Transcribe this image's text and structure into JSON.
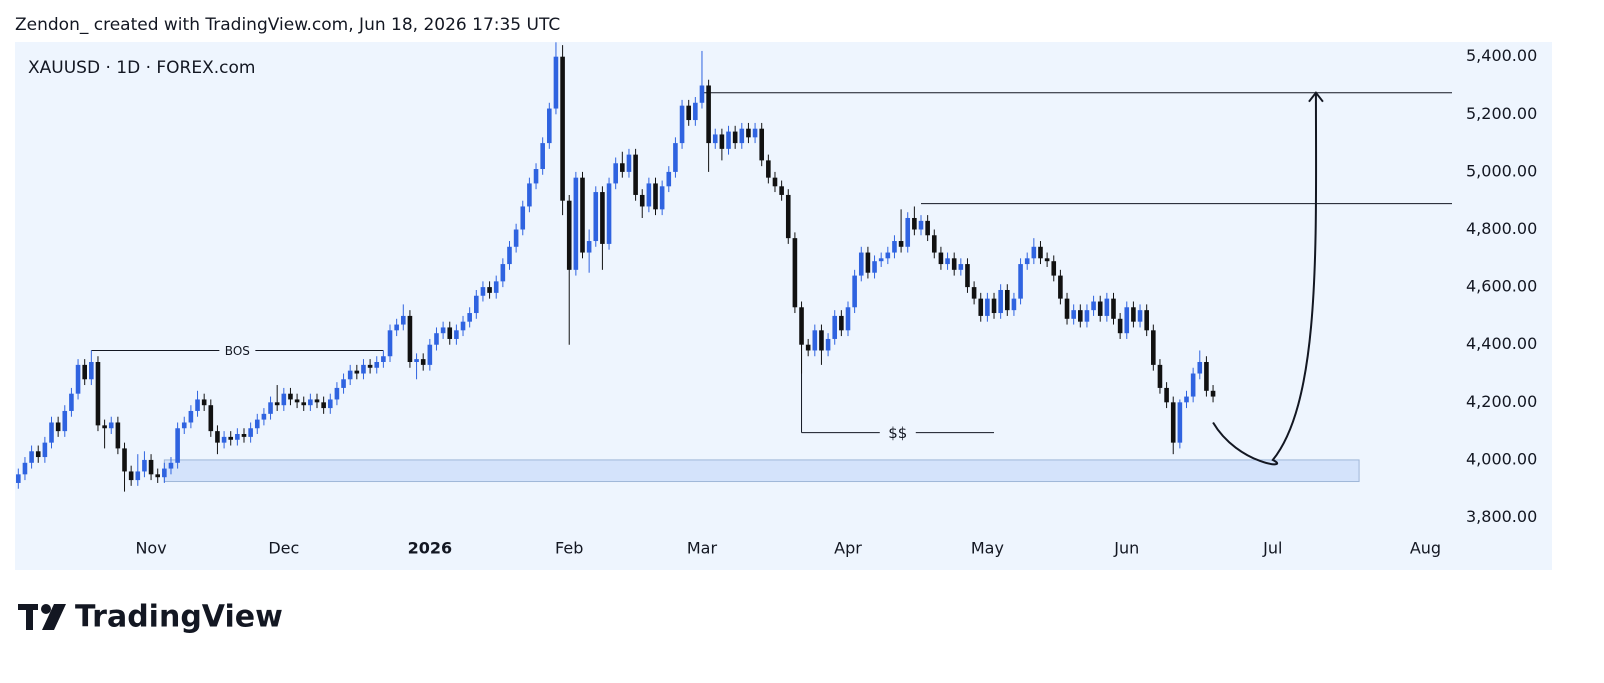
{
  "header": "Zendon_ created with TradingView.com, Jun 18, 2026 17:35 UTC",
  "footer": {
    "logo": "TradingView"
  },
  "chart_data": {
    "type": "candlestick",
    "symbol": "XAUUSD · 1D · FOREX.com",
    "up_color": "#2f63e0",
    "down_color": "#111111",
    "xlim": [
      -0.5,
      216
    ],
    "ylim": [
      3722,
      5451
    ],
    "xticks": [
      {
        "value": 20,
        "label": "Nov"
      },
      {
        "value": 40,
        "label": "Dec"
      },
      {
        "value": 62,
        "label": "2026"
      },
      {
        "value": 83,
        "label": "Feb"
      },
      {
        "value": 103,
        "label": "Mar"
      },
      {
        "value": 125,
        "label": "Apr"
      },
      {
        "value": 146,
        "label": "May"
      },
      {
        "value": 167,
        "label": "Jun"
      },
      {
        "value": 189,
        "label": "Jul"
      },
      {
        "value": 212,
        "label": "Aug"
      }
    ],
    "yticks": [
      {
        "value": 3800,
        "label": "3,800.00"
      },
      {
        "value": 4000,
        "label": "4,000.00"
      },
      {
        "value": 4200,
        "label": "4,200.00"
      },
      {
        "value": 4400,
        "label": "4,400.00"
      },
      {
        "value": 4600,
        "label": "4,600.00"
      },
      {
        "value": 4800,
        "label": "4,800.00"
      },
      {
        "value": 5000,
        "label": "5,000.00"
      },
      {
        "value": 5200,
        "label": "5,200.00"
      },
      {
        "value": 5400,
        "label": "5,400.00"
      }
    ],
    "ohlc": [
      [
        3920,
        3970,
        3900,
        3950
      ],
      [
        3950,
        4010,
        3930,
        3990
      ],
      [
        3990,
        4050,
        3970,
        4030
      ],
      [
        4030,
        4050,
        3990,
        4010
      ],
      [
        4010,
        4080,
        3990,
        4060
      ],
      [
        4060,
        4150,
        4040,
        4130
      ],
      [
        4130,
        4150,
        4080,
        4100
      ],
      [
        4100,
        4190,
        4080,
        4170
      ],
      [
        4170,
        4250,
        4150,
        4230
      ],
      [
        4230,
        4350,
        4210,
        4330
      ],
      [
        4330,
        4350,
        4260,
        4280
      ],
      [
        4280,
        4380,
        4260,
        4340
      ],
      [
        4340,
        4360,
        4100,
        4120
      ],
      [
        4120,
        4140,
        4040,
        4110
      ],
      [
        4110,
        4150,
        4090,
        4130
      ],
      [
        4130,
        4150,
        4020,
        4040
      ],
      [
        4040,
        4060,
        3890,
        3960
      ],
      [
        3960,
        3980,
        3910,
        3930
      ],
      [
        3930,
        4020,
        3910,
        3960
      ],
      [
        3960,
        4030,
        3940,
        4000
      ],
      [
        4000,
        4020,
        3930,
        3950
      ],
      [
        3950,
        3970,
        3920,
        3940
      ],
      [
        3940,
        3990,
        3920,
        3970
      ],
      [
        3970,
        4010,
        3950,
        3990
      ],
      [
        3990,
        4130,
        3970,
        4110
      ],
      [
        4110,
        4150,
        4090,
        4130
      ],
      [
        4130,
        4190,
        4110,
        4170
      ],
      [
        4170,
        4240,
        4150,
        4210
      ],
      [
        4210,
        4230,
        4170,
        4190
      ],
      [
        4190,
        4210,
        4080,
        4100
      ],
      [
        4100,
        4120,
        4020,
        4060
      ],
      [
        4060,
        4100,
        4040,
        4080
      ],
      [
        4080,
        4100,
        4050,
        4070
      ],
      [
        4070,
        4110,
        4050,
        4090
      ],
      [
        4090,
        4110,
        4060,
        4080
      ],
      [
        4080,
        4130,
        4060,
        4110
      ],
      [
        4110,
        4160,
        4090,
        4140
      ],
      [
        4140,
        4180,
        4120,
        4160
      ],
      [
        4160,
        4220,
        4140,
        4200
      ],
      [
        4200,
        4260,
        4170,
        4190
      ],
      [
        4190,
        4250,
        4170,
        4230
      ],
      [
        4230,
        4250,
        4190,
        4210
      ],
      [
        4210,
        4230,
        4180,
        4200
      ],
      [
        4200,
        4220,
        4170,
        4190
      ],
      [
        4190,
        4230,
        4170,
        4210
      ],
      [
        4210,
        4230,
        4180,
        4200
      ],
      [
        4200,
        4220,
        4160,
        4180
      ],
      [
        4180,
        4230,
        4160,
        4210
      ],
      [
        4210,
        4270,
        4190,
        4250
      ],
      [
        4250,
        4300,
        4230,
        4280
      ],
      [
        4280,
        4330,
        4260,
        4310
      ],
      [
        4310,
        4330,
        4280,
        4300
      ],
      [
        4300,
        4350,
        4280,
        4330
      ],
      [
        4330,
        4350,
        4300,
        4320
      ],
      [
        4320,
        4360,
        4300,
        4340
      ],
      [
        4340,
        4380,
        4320,
        4360
      ],
      [
        4360,
        4470,
        4340,
        4450
      ],
      [
        4450,
        4490,
        4430,
        4470
      ],
      [
        4470,
        4540,
        4450,
        4500
      ],
      [
        4500,
        4520,
        4320,
        4340
      ],
      [
        4340,
        4370,
        4280,
        4350
      ],
      [
        4350,
        4370,
        4310,
        4330
      ],
      [
        4330,
        4420,
        4310,
        4400
      ],
      [
        4400,
        4460,
        4380,
        4440
      ],
      [
        4440,
        4480,
        4420,
        4460
      ],
      [
        4460,
        4480,
        4400,
        4420
      ],
      [
        4420,
        4470,
        4400,
        4450
      ],
      [
        4450,
        4500,
        4430,
        4480
      ],
      [
        4480,
        4530,
        4460,
        4510
      ],
      [
        4510,
        4590,
        4490,
        4570
      ],
      [
        4570,
        4620,
        4550,
        4600
      ],
      [
        4600,
        4620,
        4560,
        4580
      ],
      [
        4580,
        4640,
        4560,
        4620
      ],
      [
        4620,
        4700,
        4600,
        4680
      ],
      [
        4680,
        4760,
        4660,
        4740
      ],
      [
        4740,
        4820,
        4720,
        4800
      ],
      [
        4800,
        4900,
        4780,
        4880
      ],
      [
        4880,
        4980,
        4860,
        4960
      ],
      [
        4960,
        5030,
        4940,
        5010
      ],
      [
        5010,
        5120,
        4990,
        5100
      ],
      [
        5100,
        5240,
        5080,
        5220
      ],
      [
        5220,
        5450,
        5200,
        5400
      ],
      [
        5400,
        5440,
        4850,
        4900
      ],
      [
        4900,
        4920,
        4400,
        4660
      ],
      [
        4660,
        5000,
        4640,
        4980
      ],
      [
        4980,
        5000,
        4700,
        4720
      ],
      [
        4720,
        4800,
        4650,
        4760
      ],
      [
        4760,
        4950,
        4740,
        4930
      ],
      [
        4930,
        4950,
        4660,
        4750
      ],
      [
        4750,
        4980,
        4730,
        4960
      ],
      [
        4960,
        5050,
        4940,
        5030
      ],
      [
        5030,
        5070,
        4980,
        5000
      ],
      [
        5000,
        5080,
        4980,
        5060
      ],
      [
        5060,
        5080,
        4900,
        4920
      ],
      [
        4920,
        4940,
        4840,
        4880
      ],
      [
        4880,
        4980,
        4860,
        4960
      ],
      [
        4960,
        4980,
        4850,
        4870
      ],
      [
        4870,
        4970,
        4850,
        4950
      ],
      [
        4950,
        5020,
        4930,
        5000
      ],
      [
        5000,
        5120,
        4980,
        5100
      ],
      [
        5100,
        5250,
        5080,
        5230
      ],
      [
        5230,
        5250,
        5160,
        5180
      ],
      [
        5180,
        5260,
        5160,
        5240
      ],
      [
        5240,
        5420,
        5220,
        5300
      ],
      [
        5300,
        5320,
        5000,
        5100
      ],
      [
        5100,
        5150,
        5080,
        5130
      ],
      [
        5130,
        5150,
        5040,
        5080
      ],
      [
        5080,
        5160,
        5060,
        5140
      ],
      [
        5140,
        5160,
        5080,
        5100
      ],
      [
        5100,
        5170,
        5080,
        5150
      ],
      [
        5150,
        5170,
        5100,
        5120
      ],
      [
        5120,
        5170,
        5100,
        5150
      ],
      [
        5150,
        5170,
        5020,
        5040
      ],
      [
        5040,
        5060,
        4960,
        4980
      ],
      [
        4980,
        5000,
        4930,
        4950
      ],
      [
        4950,
        4970,
        4900,
        4920
      ],
      [
        4920,
        4940,
        4750,
        4770
      ],
      [
        4770,
        4790,
        4510,
        4530
      ],
      [
        4530,
        4550,
        4300,
        4400
      ],
      [
        4400,
        4420,
        4360,
        4380
      ],
      [
        4380,
        4470,
        4360,
        4450
      ],
      [
        4450,
        4470,
        4330,
        4380
      ],
      [
        4380,
        4440,
        4360,
        4420
      ],
      [
        4420,
        4520,
        4400,
        4500
      ],
      [
        4500,
        4520,
        4430,
        4450
      ],
      [
        4450,
        4550,
        4430,
        4530
      ],
      [
        4530,
        4660,
        4510,
        4640
      ],
      [
        4640,
        4740,
        4620,
        4720
      ],
      [
        4720,
        4740,
        4630,
        4650
      ],
      [
        4650,
        4710,
        4630,
        4690
      ],
      [
        4690,
        4720,
        4670,
        4700
      ],
      [
        4700,
        4740,
        4680,
        4720
      ],
      [
        4720,
        4780,
        4700,
        4760
      ],
      [
        4760,
        4870,
        4720,
        4740
      ],
      [
        4740,
        4860,
        4720,
        4840
      ],
      [
        4840,
        4880,
        4780,
        4800
      ],
      [
        4800,
        4850,
        4780,
        4830
      ],
      [
        4830,
        4850,
        4760,
        4780
      ],
      [
        4780,
        4800,
        4700,
        4720
      ],
      [
        4720,
        4740,
        4660,
        4680
      ],
      [
        4680,
        4720,
        4660,
        4700
      ],
      [
        4700,
        4720,
        4640,
        4660
      ],
      [
        4660,
        4700,
        4640,
        4680
      ],
      [
        4680,
        4700,
        4580,
        4600
      ],
      [
        4600,
        4620,
        4540,
        4560
      ],
      [
        4560,
        4580,
        4480,
        4500
      ],
      [
        4500,
        4580,
        4480,
        4560
      ],
      [
        4560,
        4580,
        4490,
        4510
      ],
      [
        4510,
        4610,
        4490,
        4590
      ],
      [
        4590,
        4610,
        4500,
        4520
      ],
      [
        4520,
        4580,
        4500,
        4560
      ],
      [
        4560,
        4700,
        4540,
        4680
      ],
      [
        4680,
        4720,
        4660,
        4700
      ],
      [
        4700,
        4770,
        4680,
        4740
      ],
      [
        4740,
        4760,
        4680,
        4700
      ],
      [
        4700,
        4720,
        4670,
        4690
      ],
      [
        4690,
        4710,
        4620,
        4640
      ],
      [
        4640,
        4660,
        4540,
        4560
      ],
      [
        4560,
        4580,
        4470,
        4490
      ],
      [
        4490,
        4540,
        4470,
        4520
      ],
      [
        4520,
        4540,
        4460,
        4480
      ],
      [
        4480,
        4540,
        4460,
        4520
      ],
      [
        4520,
        4570,
        4500,
        4550
      ],
      [
        4550,
        4570,
        4480,
        4500
      ],
      [
        4500,
        4580,
        4480,
        4560
      ],
      [
        4560,
        4580,
        4470,
        4490
      ],
      [
        4490,
        4510,
        4420,
        4440
      ],
      [
        4440,
        4550,
        4420,
        4530
      ],
      [
        4530,
        4550,
        4460,
        4480
      ],
      [
        4480,
        4540,
        4460,
        4520
      ],
      [
        4520,
        4540,
        4430,
        4450
      ],
      [
        4450,
        4470,
        4310,
        4330
      ],
      [
        4330,
        4350,
        4230,
        4250
      ],
      [
        4250,
        4270,
        4180,
        4200
      ],
      [
        4200,
        4220,
        4020,
        4060
      ],
      [
        4060,
        4210,
        4040,
        4200
      ],
      [
        4200,
        4240,
        4180,
        4220
      ],
      [
        4220,
        4320,
        4200,
        4300
      ],
      [
        4300,
        4380,
        4280,
        4340
      ],
      [
        4340,
        4360,
        4220,
        4240
      ],
      [
        4240,
        4260,
        4200,
        4220
      ]
    ],
    "hlines": [
      {
        "y": 5275,
        "x": [
          103,
          216
        ]
      },
      {
        "y": 4890,
        "x": [
          136,
          216
        ]
      }
    ],
    "labeled_lines": [
      {
        "label": "BOS",
        "y": 4380,
        "x": [
          11,
          55
        ]
      },
      {
        "label": "$$",
        "y": 4095,
        "x": [
          118,
          147
        ],
        "y_start": 4480
      }
    ],
    "zone": {
      "y": [
        3925,
        4000
      ],
      "x": [
        22,
        202
      ]
    },
    "arrow": {
      "x": [
        180,
        187.5,
        195.5
      ],
      "y": [
        4130,
        4000,
        5275
      ]
    }
  }
}
